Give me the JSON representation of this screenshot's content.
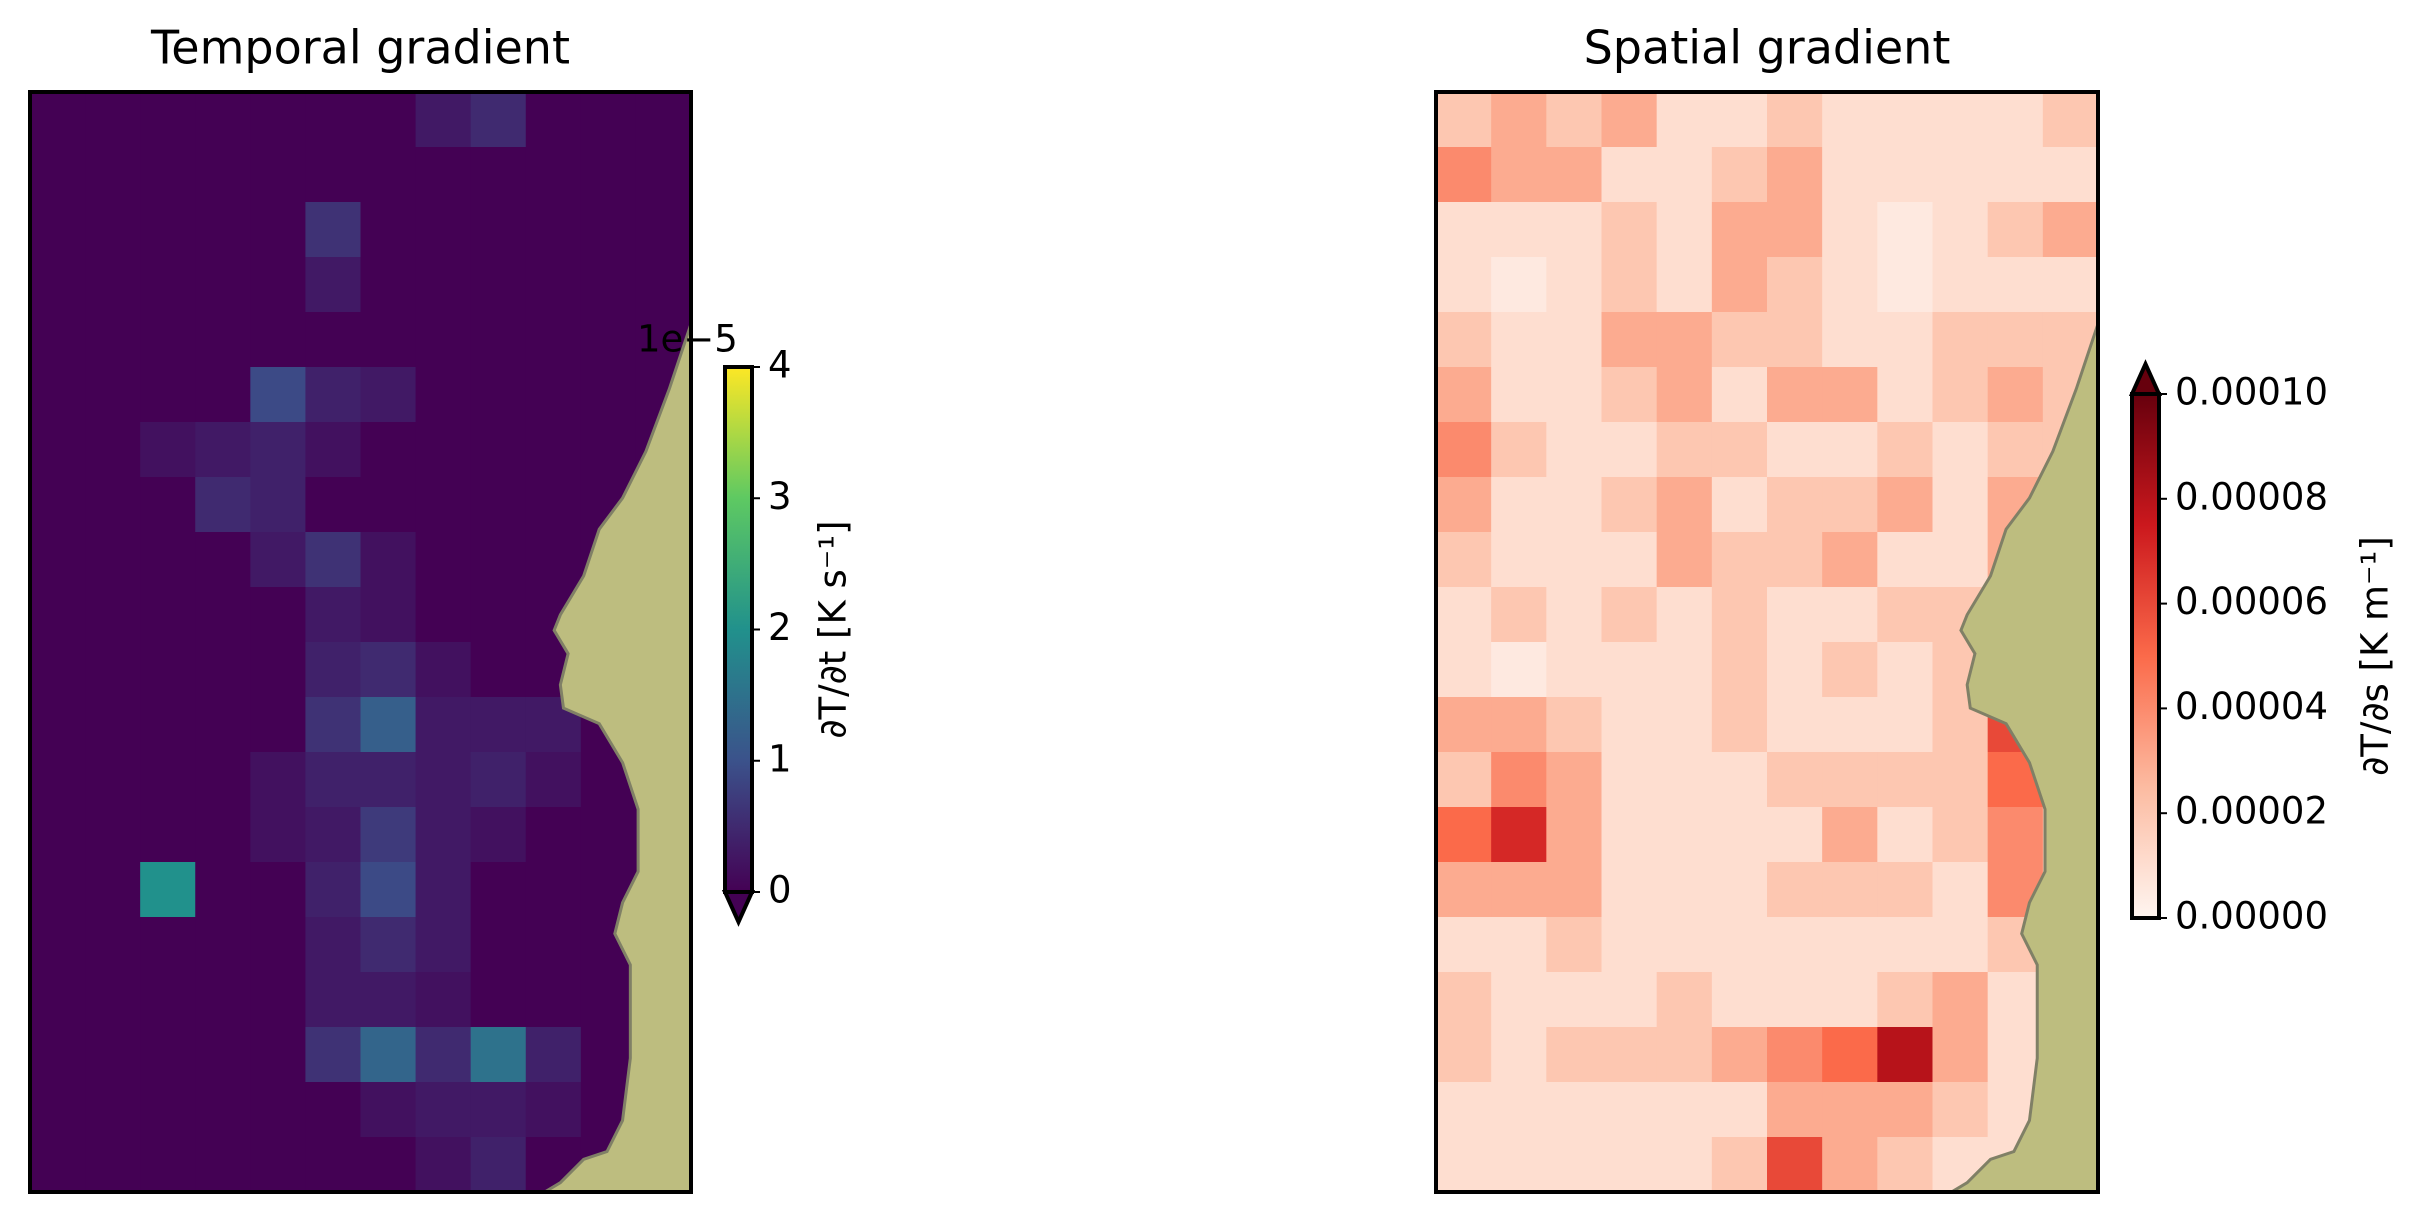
{
  "chart_data": [
    {
      "type": "heatmap",
      "title": "Temporal gradient",
      "colormap": "viridis",
      "extend": "min",
      "colorbar_label": "∂T/∂t [K s⁻¹]",
      "colorbar_offset": "1e−5",
      "zlim": [
        0,
        4e-05
      ],
      "zticks": [
        0,
        {
          "value": 1e-05,
          "label": "1"
        },
        {
          "value": 2e-05,
          "label": "2"
        },
        {
          "value": 3e-05,
          "label": "3"
        },
        {
          "value": 4e-05,
          "label": "4"
        }
      ],
      "z": [
        [
          0,
          0,
          0,
          0,
          0,
          0,
          0,
          3e-06,
          5e-06,
          0,
          0,
          0
        ],
        [
          0,
          0,
          0,
          0,
          0,
          0,
          0,
          0,
          0,
          0,
          0,
          0
        ],
        [
          0,
          0,
          0,
          0,
          0,
          6e-06,
          0,
          0,
          0,
          0,
          0,
          0
        ],
        [
          0,
          0,
          0,
          0,
          0,
          3e-06,
          0,
          0,
          0,
          0,
          0,
          0
        ],
        [
          0,
          0,
          0,
          0,
          0,
          0,
          0,
          0,
          0,
          0,
          0,
          0
        ],
        [
          0,
          0,
          0,
          0,
          9e-06,
          4e-06,
          3e-06,
          0,
          0,
          0,
          0,
          0
        ],
        [
          0,
          0,
          2e-06,
          3e-06,
          4e-06,
          2e-06,
          0,
          0,
          0,
          0,
          0,
          0
        ],
        [
          0,
          0,
          0,
          5e-06,
          4e-06,
          0,
          0,
          0,
          0,
          0,
          0,
          0
        ],
        [
          0,
          0,
          0,
          0,
          3e-06,
          6e-06,
          2e-06,
          0,
          0,
          0,
          0,
          0
        ],
        [
          0,
          0,
          0,
          0,
          0,
          3e-06,
          2e-06,
          0,
          0,
          0,
          0,
          0
        ],
        [
          0,
          0,
          0,
          0,
          0,
          4e-06,
          5e-06,
          2e-06,
          0,
          0,
          0,
          0
        ],
        [
          0,
          0,
          0,
          0,
          0,
          6e-06,
          1.2e-05,
          3e-06,
          3e-06,
          3e-06,
          0,
          0
        ],
        [
          0,
          0,
          0,
          0,
          2e-06,
          4e-06,
          4e-06,
          3e-06,
          4e-06,
          2e-06,
          0,
          0
        ],
        [
          0,
          0,
          0,
          0,
          2e-06,
          3e-06,
          7e-06,
          3e-06,
          2e-06,
          0,
          0,
          0
        ],
        [
          0,
          0,
          2e-05,
          0,
          0,
          4e-06,
          9e-06,
          3e-06,
          0,
          0,
          0,
          0
        ],
        [
          0,
          0,
          0,
          0,
          0,
          3e-06,
          5e-06,
          3e-06,
          0,
          0,
          0,
          0
        ],
        [
          0,
          0,
          0,
          0,
          0,
          3e-06,
          3e-06,
          2e-06,
          0,
          0,
          0,
          0
        ],
        [
          0,
          0,
          0,
          0,
          0,
          6e-06,
          1.3e-05,
          5e-06,
          1.5e-05,
          4e-06,
          0,
          0
        ],
        [
          0,
          0,
          0,
          0,
          0,
          0,
          2e-06,
          3e-06,
          3e-06,
          2e-06,
          0,
          0
        ],
        [
          0,
          0,
          0,
          0,
          0,
          0,
          0,
          2e-06,
          4e-06,
          0,
          0,
          0
        ]
      ]
    },
    {
      "type": "heatmap",
      "title": "Spatial gradient",
      "colormap": "Reds",
      "extend": "max",
      "colorbar_label": "∂T/∂s [K m⁻¹]",
      "zlim": [
        0,
        0.0001
      ],
      "zticks": [
        {
          "value": 0,
          "label": "0.00000"
        },
        {
          "value": 2e-05,
          "label": "0.00002"
        },
        {
          "value": 4e-05,
          "label": "0.00004"
        },
        {
          "value": 6e-05,
          "label": "0.00006"
        },
        {
          "value": 8e-05,
          "label": "0.00008"
        },
        {
          "value": 0.0001,
          "label": "0.00010"
        }
      ],
      "z": [
        [
          2e-05,
          3e-05,
          2e-05,
          3e-05,
          1e-05,
          1e-05,
          2e-05,
          1e-05,
          1e-05,
          1e-05,
          1e-05,
          2e-05
        ],
        [
          4e-05,
          3e-05,
          3e-05,
          1e-05,
          1e-05,
          2e-05,
          3e-05,
          1e-05,
          1e-05,
          1e-05,
          1e-05,
          1e-05
        ],
        [
          1e-05,
          1e-05,
          1e-05,
          2e-05,
          1e-05,
          3e-05,
          3e-05,
          1e-05,
          5e-06,
          1e-05,
          2e-05,
          3e-05
        ],
        [
          1e-05,
          5e-06,
          1e-05,
          2e-05,
          1e-05,
          3e-05,
          2e-05,
          1e-05,
          5e-06,
          1e-05,
          1e-05,
          1e-05
        ],
        [
          2e-05,
          1e-05,
          1e-05,
          3e-05,
          3e-05,
          2e-05,
          2e-05,
          1e-05,
          1e-05,
          2e-05,
          2e-05,
          2e-05
        ],
        [
          3e-05,
          1e-05,
          1e-05,
          2e-05,
          3e-05,
          1e-05,
          3e-05,
          3e-05,
          1e-05,
          2e-05,
          3e-05,
          2e-05
        ],
        [
          4e-05,
          2e-05,
          1e-05,
          1e-05,
          2e-05,
          2e-05,
          1e-05,
          1e-05,
          2e-05,
          1e-05,
          2e-05,
          2e-05
        ],
        [
          3e-05,
          1e-05,
          1e-05,
          2e-05,
          3e-05,
          1e-05,
          2e-05,
          2e-05,
          3e-05,
          1e-05,
          3e-05,
          2e-05
        ],
        [
          2e-05,
          1e-05,
          1e-05,
          1e-05,
          3e-05,
          2e-05,
          2e-05,
          3e-05,
          1e-05,
          1e-05,
          3e-05,
          2e-05
        ],
        [
          1e-05,
          2e-05,
          1e-05,
          2e-05,
          1e-05,
          2e-05,
          1e-05,
          1e-05,
          2e-05,
          2e-05,
          2e-05,
          2e-05
        ],
        [
          1e-05,
          5e-06,
          1e-05,
          1e-05,
          1e-05,
          2e-05,
          1e-05,
          2e-05,
          1e-05,
          2e-05,
          3e-05,
          2e-05
        ],
        [
          3e-05,
          3e-05,
          2e-05,
          1e-05,
          1e-05,
          2e-05,
          1e-05,
          1e-05,
          1e-05,
          2e-05,
          6e-05,
          2e-05
        ],
        [
          2e-05,
          4e-05,
          3e-05,
          1e-05,
          1e-05,
          1e-05,
          2e-05,
          2e-05,
          2e-05,
          2e-05,
          5e-05,
          2e-05
        ],
        [
          5e-05,
          7e-05,
          3e-05,
          1e-05,
          1e-05,
          1e-05,
          1e-05,
          3e-05,
          1e-05,
          2e-05,
          4e-05,
          2e-05
        ],
        [
          3e-05,
          3e-05,
          3e-05,
          1e-05,
          1e-05,
          1e-05,
          2e-05,
          2e-05,
          2e-05,
          1e-05,
          4e-05,
          2e-05
        ],
        [
          1e-05,
          1e-05,
          2e-05,
          1e-05,
          1e-05,
          1e-05,
          1e-05,
          1e-05,
          1e-05,
          1e-05,
          2e-05,
          1e-05
        ],
        [
          2e-05,
          1e-05,
          1e-05,
          1e-05,
          2e-05,
          1e-05,
          1e-05,
          1e-05,
          2e-05,
          3e-05,
          1e-05,
          1e-05
        ],
        [
          2e-05,
          1e-05,
          2e-05,
          2e-05,
          2e-05,
          3e-05,
          4e-05,
          5e-05,
          8e-05,
          3e-05,
          1e-05,
          1e-05
        ],
        [
          1e-05,
          1e-05,
          1e-05,
          1e-05,
          1e-05,
          1e-05,
          3e-05,
          3e-05,
          3e-05,
          2e-05,
          1e-05,
          1e-05
        ],
        [
          1e-05,
          1e-05,
          1e-05,
          1e-05,
          1e-05,
          2e-05,
          6e-05,
          3e-05,
          2e-05,
          1e-05,
          1e-05,
          1e-05
        ]
      ]
    }
  ]
}
